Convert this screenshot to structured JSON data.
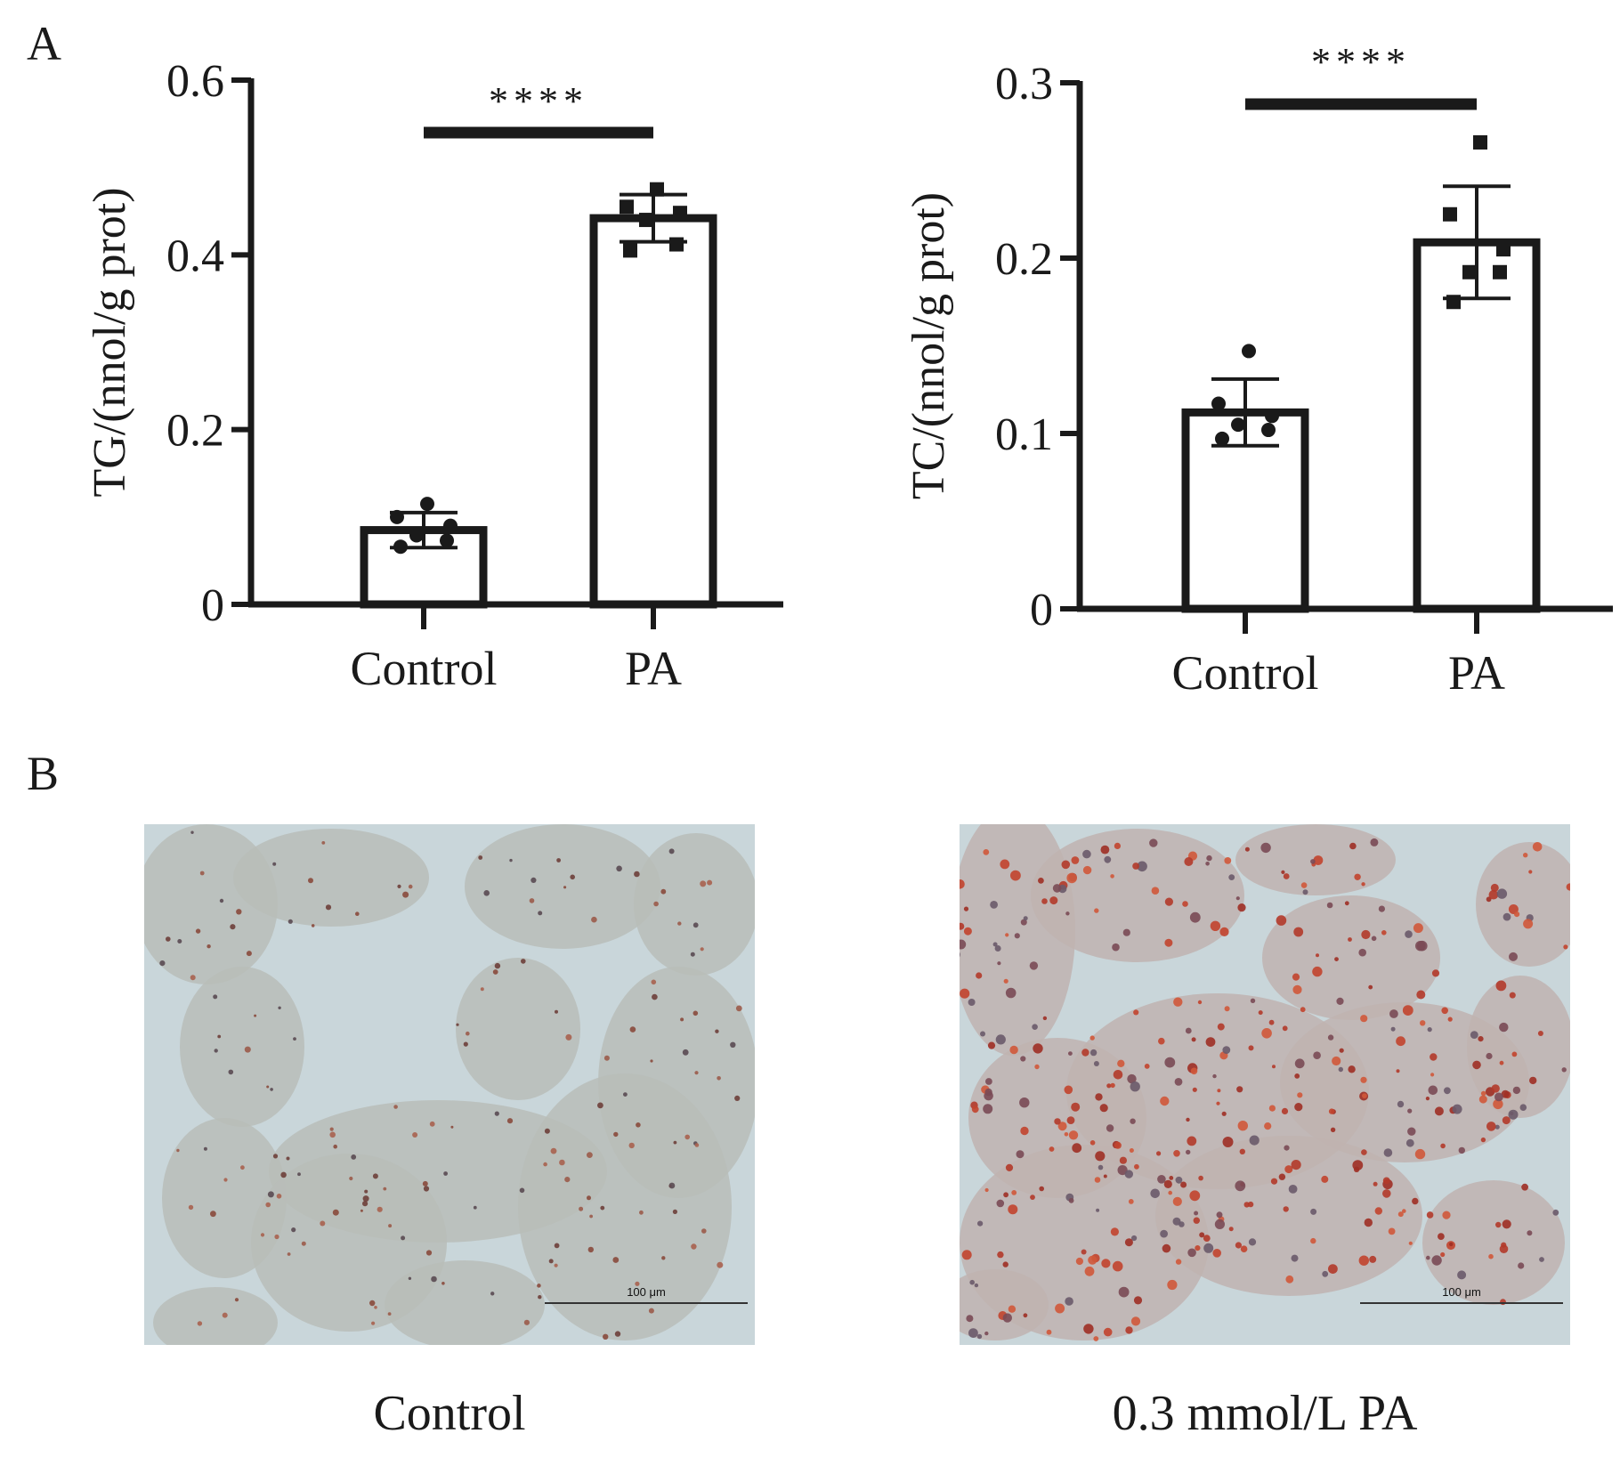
{
  "panels": {
    "a": "A",
    "b": "B"
  },
  "chart_data": [
    {
      "type": "bar",
      "ylabel": "TG/(nnol/g prot)",
      "xlabel": "",
      "categories": [
        "Control",
        "PA"
      ],
      "ylim": [
        0,
        0.6
      ],
      "yticks": [
        0,
        0.2,
        0.4,
        0.6
      ],
      "ytick_labels": [
        "0",
        "0.2",
        "0.4",
        "0.6"
      ],
      "series": [
        {
          "values": [
            0.085,
            0.442
          ],
          "sd": [
            0.02,
            0.027
          ]
        }
      ],
      "points": [
        [
          0.066,
          0.073,
          0.079,
          0.09,
          0.1,
          0.115
        ],
        [
          0.405,
          0.412,
          0.44,
          0.448,
          0.455,
          0.475
        ]
      ],
      "significance": {
        "pair": [
          "Control",
          "PA"
        ],
        "label": "****"
      },
      "grid": false,
      "legend": "none"
    },
    {
      "type": "bar",
      "ylabel": "TC/(nnol/g prot)",
      "xlabel": "",
      "categories": [
        "Control",
        "PA"
      ],
      "ylim": [
        0,
        0.3
      ],
      "yticks": [
        0,
        0.1,
        0.2,
        0.3
      ],
      "ytick_labels": [
        "0",
        "0.1",
        "0.2",
        "0.3"
      ],
      "series": [
        {
          "values": [
            0.112,
            0.209
          ],
          "sd": [
            0.019,
            0.032
          ]
        }
      ],
      "points": [
        [
          0.097,
          0.102,
          0.105,
          0.11,
          0.117,
          0.147
        ],
        [
          0.175,
          0.192,
          0.192,
          0.205,
          0.225,
          0.266
        ]
      ],
      "significance": {
        "pair": [
          "Control",
          "PA"
        ],
        "label": "****"
      },
      "grid": false,
      "legend": "none"
    }
  ],
  "micrographs": [
    {
      "caption": "Control",
      "scale_bar": "100 μm"
    },
    {
      "caption": "0.3 mmol/L PA",
      "scale_bar": "100 μm"
    }
  ]
}
